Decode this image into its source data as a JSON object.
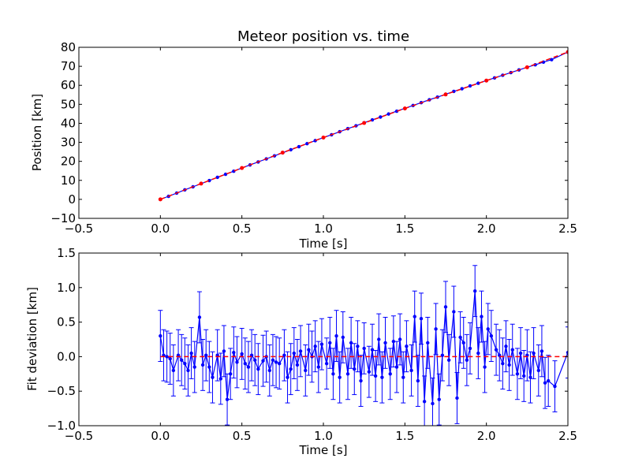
{
  "colors": {
    "data": "#0000ff",
    "fit": "#ff0000",
    "axis": "#000000",
    "background": "#ffffff"
  },
  "chart_data": [
    {
      "type": "line",
      "title": "Meteor position vs. time",
      "xlabel": "Time [s]",
      "ylabel": "Position [km]",
      "xlim": [
        -0.5,
        2.5
      ],
      "ylim": [
        -10,
        80
      ],
      "xticks": [
        -0.5,
        0.0,
        0.5,
        1.0,
        1.5,
        2.0,
        2.5
      ],
      "xtick_labels": [
        "−0.5",
        "0.0",
        "0.5",
        "1.0",
        "1.5",
        "2.0",
        "2.5"
      ],
      "yticks": [
        -10,
        0,
        10,
        20,
        30,
        40,
        50,
        60,
        70,
        80
      ],
      "ytick_labels": [
        "−10",
        "0",
        "10",
        "20",
        "30",
        "40",
        "50",
        "60",
        "70",
        "80"
      ],
      "grid": false,
      "series": [
        {
          "style": "blue line with dot markers",
          "x": [
            0.0,
            0.05,
            0.1,
            0.15,
            0.2,
            0.25,
            0.3,
            0.35,
            0.4,
            0.45,
            0.5,
            0.55,
            0.6,
            0.65,
            0.7,
            0.75,
            0.8,
            0.85,
            0.9,
            0.95,
            1.0,
            1.05,
            1.1,
            1.15,
            1.2,
            1.25,
            1.3,
            1.35,
            1.4,
            1.45,
            1.5,
            1.55,
            1.6,
            1.65,
            1.7,
            1.75,
            1.8,
            1.85,
            1.9,
            1.95,
            2.0,
            2.05,
            2.1,
            2.15,
            2.2,
            2.25,
            2.3,
            2.35,
            2.4,
            2.5
          ],
          "y": [
            0.0,
            1.6,
            3.3,
            5.0,
            6.6,
            8.3,
            9.9,
            11.6,
            13.2,
            14.8,
            16.5,
            18.1,
            19.7,
            21.3,
            22.9,
            24.5,
            26.1,
            27.7,
            29.3,
            30.9,
            32.5,
            34.0,
            35.6,
            37.2,
            38.7,
            40.3,
            41.8,
            43.3,
            44.9,
            46.4,
            47.9,
            49.4,
            50.9,
            52.4,
            53.8,
            55.3,
            56.8,
            58.2,
            59.7,
            61.1,
            62.5,
            63.9,
            65.3,
            66.7,
            68.1,
            69.5,
            70.8,
            72.2,
            73.5,
            77.5
          ]
        },
        {
          "style": "red dashed fit line",
          "x": [
            0.0,
            0.25,
            0.5,
            0.75,
            1.0,
            1.25,
            1.5,
            1.75,
            2.0,
            2.25,
            2.5
          ],
          "y": [
            0.0,
            8.3,
            16.5,
            24.6,
            32.5,
            40.2,
            47.8,
            55.2,
            62.5,
            69.5,
            77.5
          ]
        }
      ]
    },
    {
      "type": "line",
      "title": "",
      "xlabel": "Time [s]",
      "ylabel": "Fit deviation [km]",
      "xlim": [
        -0.5,
        2.5
      ],
      "ylim": [
        -1.0,
        1.5
      ],
      "xticks": [
        -0.5,
        0.0,
        0.5,
        1.0,
        1.5,
        2.0,
        2.5
      ],
      "xtick_labels": [
        "−0.5",
        "0.0",
        "0.5",
        "1.0",
        "1.5",
        "2.0",
        "2.5"
      ],
      "yticks": [
        -1.0,
        -0.5,
        0.0,
        0.5,
        1.0,
        1.5
      ],
      "ytick_labels": [
        "−1.0",
        "−0.5",
        "0.0",
        "0.5",
        "1.0",
        "1.5"
      ],
      "grid": false,
      "series": [
        {
          "style": "blue line with dot markers and error bars",
          "x": [
            0.0,
            0.02,
            0.04,
            0.06,
            0.08,
            0.11,
            0.13,
            0.15,
            0.17,
            0.19,
            0.21,
            0.24,
            0.26,
            0.28,
            0.3,
            0.32,
            0.35,
            0.37,
            0.39,
            0.41,
            0.43,
            0.45,
            0.47,
            0.5,
            0.52,
            0.54,
            0.56,
            0.58,
            0.6,
            0.63,
            0.65,
            0.67,
            0.69,
            0.71,
            0.73,
            0.76,
            0.78,
            0.8,
            0.82,
            0.84,
            0.86,
            0.89,
            0.91,
            0.93,
            0.95,
            0.97,
            0.99,
            1.02,
            1.04,
            1.06,
            1.08,
            1.1,
            1.12,
            1.15,
            1.17,
            1.19,
            1.21,
            1.23,
            1.25,
            1.28,
            1.3,
            1.32,
            1.34,
            1.36,
            1.38,
            1.41,
            1.43,
            1.45,
            1.47,
            1.49,
            1.51,
            1.54,
            1.56,
            1.58,
            1.6,
            1.62,
            1.64,
            1.67,
            1.69,
            1.71,
            1.73,
            1.75,
            1.77,
            1.8,
            1.82,
            1.84,
            1.86,
            1.88,
            1.9,
            1.93,
            1.95,
            1.97,
            1.99,
            2.01,
            2.03,
            2.06,
            2.08,
            2.1,
            2.12,
            2.14,
            2.16,
            2.19,
            2.21,
            2.23,
            2.25,
            2.27,
            2.29,
            2.32,
            2.34,
            2.36,
            2.38,
            2.42,
            2.5
          ],
          "y": [
            0.3,
            0.02,
            0.0,
            -0.03,
            -0.2,
            0.02,
            -0.05,
            -0.1,
            -0.2,
            0.05,
            -0.15,
            0.57,
            -0.12,
            0.02,
            -0.15,
            -0.3,
            0.02,
            -0.32,
            0.08,
            -0.62,
            -0.25,
            0.06,
            -0.08,
            0.04,
            -0.1,
            -0.15,
            0.02,
            -0.05,
            -0.18,
            -0.06,
            0.0,
            -0.2,
            -0.05,
            -0.08,
            -0.1,
            0.02,
            -0.3,
            -0.18,
            0.05,
            -0.12,
            0.08,
            -0.2,
            0.1,
            0.0,
            0.15,
            -0.15,
            0.18,
            -0.1,
            0.2,
            -0.25,
            0.3,
            -0.3,
            0.28,
            -0.25,
            0.2,
            -0.18,
            0.15,
            -0.35,
            0.12,
            -0.22,
            0.1,
            -0.28,
            0.25,
            -0.3,
            0.2,
            -0.25,
            0.22,
            -0.15,
            0.25,
            -0.3,
            0.15,
            -0.2,
            0.58,
            -0.35,
            0.55,
            -0.65,
            0.2,
            -0.68,
            0.4,
            -0.62,
            0.02,
            0.72,
            -0.05,
            0.65,
            -0.6,
            0.28,
            0.2,
            -0.05,
            0.12,
            0.95,
            0.05,
            0.58,
            -0.15,
            0.4,
            0.3,
            0.1,
            0.02,
            -0.1,
            0.15,
            -0.12,
            0.1,
            -0.25,
            0.05,
            -0.28,
            0.02,
            -0.3,
            0.05,
            -0.2,
            0.08,
            -0.38,
            -0.35,
            -0.43,
            0.06
          ],
          "yerr": 0.37
        },
        {
          "style": "red dashed zero line",
          "x": [
            0.0,
            2.5
          ],
          "y": [
            0.0,
            0.0
          ]
        }
      ]
    }
  ]
}
